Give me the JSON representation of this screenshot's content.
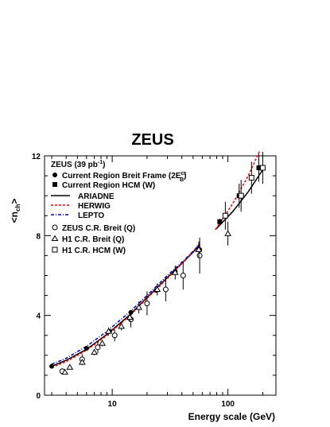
{
  "chart_data": {
    "type": "scatter",
    "title": "ZEUS",
    "xlabel": "Energy scale (GeV)",
    "ylabel": "<n",
    "ylabel_sub": "ch",
    "ylabel_close": ">",
    "xscale": "log",
    "xlim": [
      2.6,
      260
    ],
    "ylim": [
      0,
      12
    ],
    "x_ticks": [
      {
        "value": 10,
        "label": "10"
      },
      {
        "value": 100,
        "label": "100"
      }
    ],
    "y_ticks": [
      {
        "value": 0,
        "label": "0"
      },
      {
        "value": 4,
        "label": "4"
      },
      {
        "value": 8,
        "label": "8"
      },
      {
        "value": 12,
        "label": "12"
      }
    ],
    "legend": {
      "placement": "top-left",
      "header": "ZEUS (39 pb",
      "header_sup": "-1",
      "header_close": ")",
      "entries": [
        {
          "symbol": "filled-circle",
          "label": "Current Region Breit Frame (2E",
          "sup": "cr",
          "sub": "B",
          "tail": ")"
        },
        {
          "symbol": "filled-square",
          "label": "Current Region HCM (W)"
        },
        {
          "symbol": "solid-line",
          "label": "ARIADNE"
        },
        {
          "symbol": "dashed-line",
          "label": "HERWIG"
        },
        {
          "symbol": "dashdot-line",
          "label": "LEPTO"
        },
        {
          "symbol": "open-circle",
          "label": "ZEUS C.R. Breit (Q)"
        },
        {
          "symbol": "open-triangle",
          "label": "H1 C.R. Breit (Q)"
        },
        {
          "symbol": "open-square",
          "label": "H1 C.R. HCM (W)"
        }
      ]
    },
    "colors": {
      "herwig": "#ff0000",
      "lepto": "#0000cc",
      "ariadne": "#000000"
    },
    "series": [
      {
        "name": "ARIADNE",
        "style": "solid",
        "segments": [
          [
            [
              3.0,
              1.45
            ],
            [
              4.0,
              1.75
            ],
            [
              6.0,
              2.3
            ],
            [
              9.0,
              3.05
            ],
            [
              14.0,
              4.0
            ],
            [
              20.0,
              4.9
            ],
            [
              30.0,
              5.9
            ],
            [
              45.0,
              6.9
            ],
            [
              57.0,
              7.5
            ]
          ],
          [
            [
              78.0,
              8.3
            ],
            [
              110.0,
              9.2
            ],
            [
              150.0,
              10.2
            ],
            [
              200.0,
              11.3
            ]
          ]
        ]
      },
      {
        "name": "HERWIG",
        "style": "dashed",
        "segments": [
          [
            [
              3.0,
              1.4
            ],
            [
              4.0,
              1.68
            ],
            [
              6.0,
              2.25
            ],
            [
              9.0,
              3.0
            ],
            [
              14.0,
              3.95
            ],
            [
              20.0,
              4.85
            ],
            [
              30.0,
              5.85
            ],
            [
              45.0,
              6.9
            ],
            [
              57.0,
              7.6
            ]
          ],
          [
            [
              78.0,
              8.3
            ],
            [
              110.0,
              9.6
            ],
            [
              150.0,
              11.0
            ],
            [
              190.0,
              12.3
            ]
          ]
        ]
      },
      {
        "name": "LEPTO",
        "style": "dashdot",
        "segments": [
          [
            [
              3.0,
              1.55
            ],
            [
              4.0,
              1.85
            ],
            [
              6.0,
              2.45
            ],
            [
              9.0,
              3.2
            ],
            [
              14.0,
              4.15
            ],
            [
              20.0,
              5.0
            ],
            [
              30.0,
              6.0
            ],
            [
              45.0,
              6.95
            ],
            [
              57.0,
              7.55
            ]
          ]
        ]
      }
    ],
    "points": [
      {
        "name": "Current Region Breit Frame (2E_B^cr)",
        "marker": "filled-circle",
        "data": [
          [
            3.0,
            1.45,
            0.05
          ],
          [
            6.0,
            2.35,
            0.05
          ],
          [
            9.5,
            3.2,
            0.1
          ],
          [
            14.5,
            4.15,
            0.1
          ],
          [
            24.0,
            5.25,
            0.1
          ],
          [
            35.0,
            6.2,
            0.15
          ],
          [
            57.0,
            7.3,
            0.3
          ]
        ]
      },
      {
        "name": "Current Region HCM (W)",
        "marker": "filled-square",
        "data": [
          [
            85.0,
            8.7,
            0.15
          ],
          [
            125.0,
            10.0,
            0.6
          ],
          [
            185.0,
            11.4,
            0.7
          ]
        ]
      },
      {
        "name": "ZEUS C.R. Breit (Q)",
        "marker": "open-circle",
        "data": [
          [
            3.7,
            1.2,
            0.15
          ],
          [
            5.5,
            1.8,
            0.25
          ],
          [
            7.5,
            2.4,
            0.3
          ],
          [
            10.5,
            3.0,
            0.3
          ],
          [
            14.5,
            3.8,
            0.4
          ],
          [
            20.0,
            4.6,
            0.6
          ],
          [
            29.0,
            5.3,
            0.6
          ],
          [
            41.0,
            6.0,
            0.7
          ],
          [
            57.0,
            7.0,
            0.9
          ]
        ]
      },
      {
        "name": "H1 C.R. Breit (Q)",
        "marker": "open-triangle",
        "data": [
          [
            3.9,
            1.15,
            0.1
          ],
          [
            4.3,
            1.4,
            0.1
          ],
          [
            5.5,
            1.65,
            0.15
          ],
          [
            7.0,
            2.15,
            0.15
          ],
          [
            8.2,
            2.6,
            0.15
          ],
          [
            9.3,
            3.2,
            0.2
          ],
          [
            12.0,
            3.45,
            0.2
          ],
          [
            14.2,
            3.9,
            0.2
          ],
          [
            17.0,
            4.4,
            0.3
          ],
          [
            24.5,
            5.3,
            0.3
          ],
          [
            35.0,
            6.15,
            0.35
          ],
          [
            56.0,
            7.3,
            0.4
          ],
          [
            100.0,
            8.1,
            0.6
          ]
        ]
      },
      {
        "name": "H1 C.R. HCM (W)",
        "marker": "open-square",
        "data": [
          [
            95.0,
            9.0,
            0.7
          ],
          [
            130.0,
            10.0,
            0.8
          ],
          [
            160.0,
            10.9,
            0.8
          ],
          [
            200.0,
            11.4,
            0.8
          ]
        ]
      }
    ]
  }
}
